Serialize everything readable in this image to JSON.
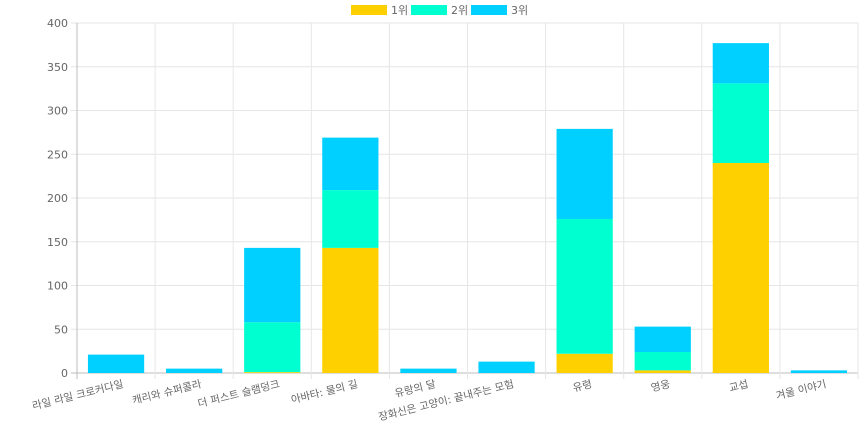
{
  "chart_data": {
    "type": "bar",
    "stacked": true,
    "legend_position": "top-center",
    "grid": true,
    "categories": [
      "라일 라일 크로커다일",
      "캐리와 슈퍼콜라",
      "더 퍼스트 슬램덩크",
      "아바타: 물의 길",
      "유랑의 달",
      "장화신은 고양이: 끝내주는 모험",
      "유령",
      "영웅",
      "교섭",
      "겨울 이야기"
    ],
    "series": [
      {
        "name": "1위",
        "color": "#FFD000",
        "values": [
          0,
          0,
          1,
          143,
          0,
          0,
          22,
          3,
          240,
          0
        ]
      },
      {
        "name": "2위",
        "color": "#00FFD0",
        "values": [
          0,
          0,
          57,
          66,
          0,
          0,
          154,
          21,
          91,
          0
        ]
      },
      {
        "name": "3위",
        "color": "#00D0FF",
        "values": [
          21,
          5,
          85,
          60,
          5,
          13,
          103,
          29,
          46,
          3
        ]
      }
    ],
    "ylim": [
      0,
      400
    ],
    "yticks": [
      0,
      50,
      100,
      150,
      200,
      250,
      300,
      350,
      400
    ]
  }
}
